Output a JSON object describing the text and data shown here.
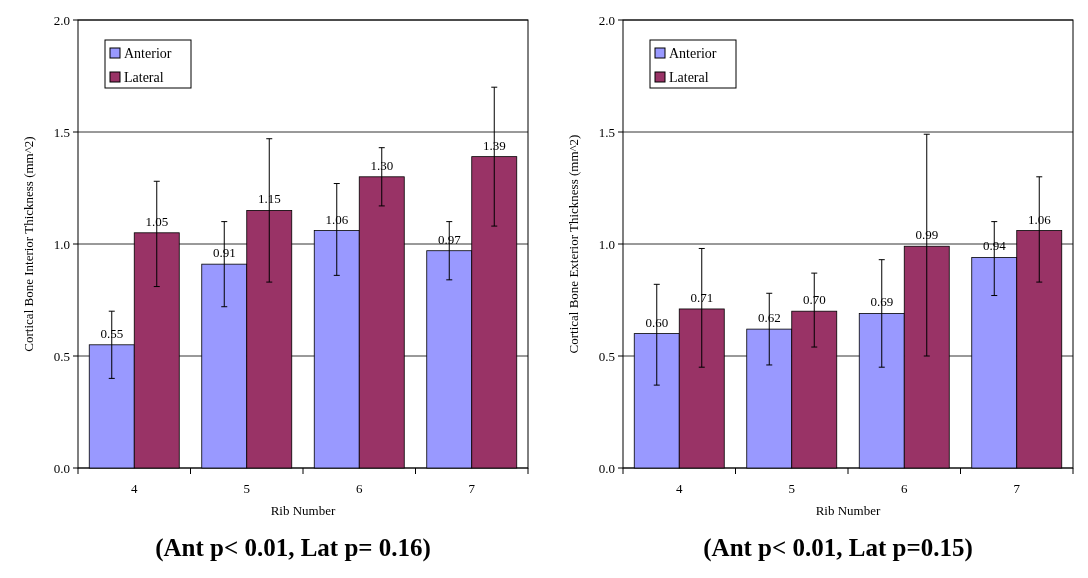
{
  "chart_data": [
    {
      "type": "bar",
      "title": "(Ant p< 0.01, Lat p= 0.16)",
      "xlabel": "Rib Number",
      "ylabel": "Cortical Bone Interior Thickness (mm^2)",
      "categories": [
        "4",
        "5",
        "6",
        "7"
      ],
      "series": [
        {
          "name": "Anterior",
          "color": "#9999ff",
          "values": [
            0.55,
            0.91,
            1.06,
            0.97
          ],
          "value_labels": [
            "0.55",
            "0.91",
            "1.06",
            "0.97"
          ],
          "errors": [
            [
              0.4,
              0.7
            ],
            [
              0.72,
              1.1
            ],
            [
              0.86,
              1.27
            ],
            [
              0.84,
              1.1
            ]
          ]
        },
        {
          "name": "Lateral",
          "color": "#993366",
          "values": [
            1.05,
            1.15,
            1.3,
            1.39
          ],
          "value_labels": [
            "1.05",
            "1.15",
            "1.30",
            "1.39"
          ],
          "errors": [
            [
              0.81,
              1.28
            ],
            [
              0.83,
              1.47
            ],
            [
              1.17,
              1.43
            ],
            [
              1.08,
              1.7
            ]
          ]
        }
      ],
      "ylim": [
        0,
        2
      ],
      "yticks": [
        {
          "value": 0,
          "label": "0.0"
        },
        {
          "value": 0.5,
          "label": "0.5"
        },
        {
          "value": 1,
          "label": "1.0"
        },
        {
          "value": 1.5,
          "label": "1.5"
        },
        {
          "value": 2,
          "label": "2.0"
        }
      ],
      "grid": "y",
      "legend": "top left"
    },
    {
      "type": "bar",
      "title": "(Ant p< 0.01, Lat p=0.15)",
      "xlabel": "Rib Number",
      "ylabel": "Cortical Bone Exterior Thickness (mm^2)",
      "categories": [
        "4",
        "5",
        "6",
        "7"
      ],
      "series": [
        {
          "name": "Anterior",
          "color": "#9999ff",
          "values": [
            0.6,
            0.62,
            0.69,
            0.94
          ],
          "value_labels": [
            "0.60",
            "0.62",
            "0.69",
            "0.94"
          ],
          "errors": [
            [
              0.37,
              0.82
            ],
            [
              0.46,
              0.78
            ],
            [
              0.45,
              0.93
            ],
            [
              0.77,
              1.1
            ]
          ]
        },
        {
          "name": "Lateral",
          "color": "#993366",
          "values": [
            0.71,
            0.7,
            0.99,
            1.06
          ],
          "value_labels": [
            "0.71",
            "0.70",
            "0.99",
            "1.06"
          ],
          "errors": [
            [
              0.45,
              0.98
            ],
            [
              0.54,
              0.87
            ],
            [
              0.5,
              1.49
            ],
            [
              0.83,
              1.3
            ]
          ]
        }
      ],
      "ylim": [
        0,
        2
      ],
      "yticks": [
        {
          "value": 0,
          "label": "0.0"
        },
        {
          "value": 0.5,
          "label": "0.5"
        },
        {
          "value": 1,
          "label": "1.0"
        },
        {
          "value": 1.5,
          "label": "1.5"
        },
        {
          "value": 2,
          "label": "2.0"
        }
      ],
      "grid": "y",
      "legend": "top left"
    }
  ]
}
